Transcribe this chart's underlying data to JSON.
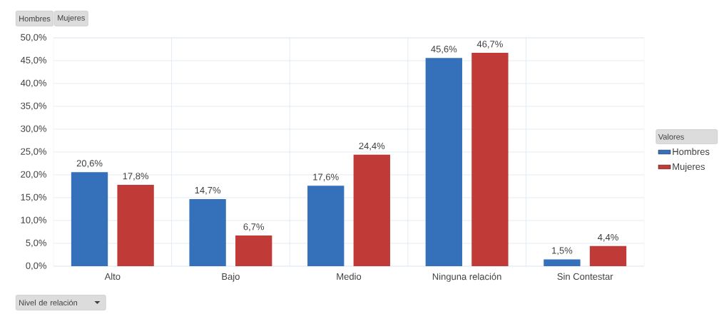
{
  "chart_data": {
    "type": "bar",
    "xlabel": "Nivel de relación",
    "legend_title": "Valores",
    "annotations": [
      "Hombres",
      "Mujeres"
    ],
    "categories": [
      "Alto",
      "Bajo",
      "Medio",
      "Ninguna relación",
      "Sin Contestar"
    ],
    "series": [
      {
        "name": "Hombres",
        "color": "#3571bb",
        "values": [
          20.6,
          14.7,
          17.6,
          45.6,
          1.5
        ],
        "value_labels": [
          "20,6%",
          "14,7%",
          "17,6%",
          "45,6%",
          "1,5%"
        ]
      },
      {
        "name": "Mujeres",
        "color": "#c03a37",
        "values": [
          17.8,
          6.7,
          24.4,
          46.7,
          4.4
        ],
        "value_labels": [
          "17,8%",
          "6,7%",
          "24,4%",
          "46,7%",
          "4,4%"
        ]
      }
    ],
    "ylim": [
      0,
      50
    ],
    "yticks": [
      {
        "value": 0,
        "label": "0,0%"
      },
      {
        "value": 5,
        "label": "5,0%"
      },
      {
        "value": 10,
        "label": "10,0%"
      },
      {
        "value": 15,
        "label": "15,0%"
      },
      {
        "value": 20,
        "label": "20,0%"
      },
      {
        "value": 25,
        "label": "25,0%"
      },
      {
        "value": 30,
        "label": "30,0%"
      },
      {
        "value": 35,
        "label": "35,0%"
      },
      {
        "value": 40,
        "label": "40,0%"
      },
      {
        "value": 45,
        "label": "45,0%"
      },
      {
        "value": 50,
        "label": "50,0%"
      }
    ],
    "grid": true,
    "legend": "right"
  }
}
